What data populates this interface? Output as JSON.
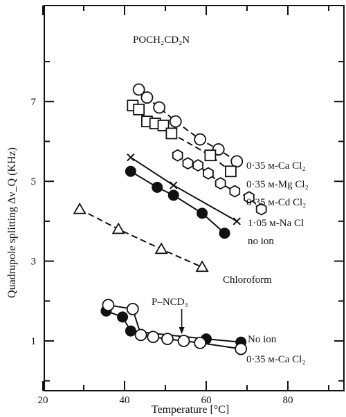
{
  "chart_data": {
    "type": "scatter",
    "title": "POCH₂CD₂N",
    "xlabel": "Temperature [°C]",
    "ylabel": "Quadrupole splitting Δν_Q (KHz)",
    "xlim": [
      20,
      95
    ],
    "ylim": [
      0,
      8.8
    ],
    "x_ticks": [
      20,
      40,
      60,
      80
    ],
    "y_ticks": [
      1,
      3,
      5,
      7
    ],
    "grid": false,
    "legend": "inline labels at right end of each curve",
    "annotation": {
      "text": "P–NCD₃",
      "arrow_to": [
        54,
        1.0
      ]
    },
    "series": [
      {
        "name": "0·35 м-Ca Cl₂",
        "marker": "circle-open",
        "line": "dashed",
        "x": [
          43.5,
          45.5,
          48.5,
          52.5,
          58.5,
          63,
          67.5
        ],
        "y": [
          7.3,
          7.1,
          6.85,
          6.5,
          6.05,
          5.8,
          5.5
        ]
      },
      {
        "name": "0·35 м-Mg Cl₂",
        "marker": "square-open",
        "line": "dashed",
        "x": [
          42,
          43.5,
          45.5,
          47.5,
          49.5,
          51.5,
          61,
          66
        ],
        "y": [
          6.9,
          6.8,
          6.5,
          6.45,
          6.4,
          6.2,
          5.65,
          5.25
        ]
      },
      {
        "name": "0·35 м-Cd Cl₂",
        "marker": "hexagon-open",
        "line": "dashed",
        "x": [
          53,
          55.5,
          58,
          60.5,
          63.5,
          67,
          70.5,
          73.5
        ],
        "y": [
          5.65,
          5.45,
          5.4,
          5.2,
          4.95,
          4.75,
          4.6,
          4.3
        ]
      },
      {
        "name": "1·05 м-Na Cl",
        "marker": "cross",
        "line": "solid",
        "x": [
          41.5,
          52,
          67.5
        ],
        "y": [
          5.6,
          4.9,
          4.0
        ]
      },
      {
        "name": "no ion",
        "marker": "circle-filled",
        "line": "solid",
        "x": [
          41.5,
          48,
          52,
          59,
          64.5
        ],
        "y": [
          5.25,
          4.85,
          4.65,
          4.2,
          3.7
        ]
      },
      {
        "name": "Chloroform",
        "marker": "triangle-open",
        "line": "dashed",
        "x": [
          29,
          38.5,
          49,
          59
        ],
        "y": [
          4.3,
          3.8,
          3.3,
          2.85
        ]
      },
      {
        "name": "No ion",
        "marker": "circle-filled",
        "line": "solid",
        "x": [
          35.5,
          39.5,
          41.5,
          60,
          68.5
        ],
        "y": [
          1.75,
          1.6,
          1.25,
          1.05,
          0.97
        ]
      },
      {
        "name": "0·35 м-Ca Cl₂",
        "marker": "circle-open",
        "line": "solid",
        "x": [
          36,
          42,
          44,
          47,
          50.5,
          54.5,
          58.5,
          68.5
        ],
        "y": [
          1.9,
          1.8,
          1.15,
          1.1,
          1.05,
          1.0,
          0.95,
          0.8
        ]
      }
    ]
  }
}
